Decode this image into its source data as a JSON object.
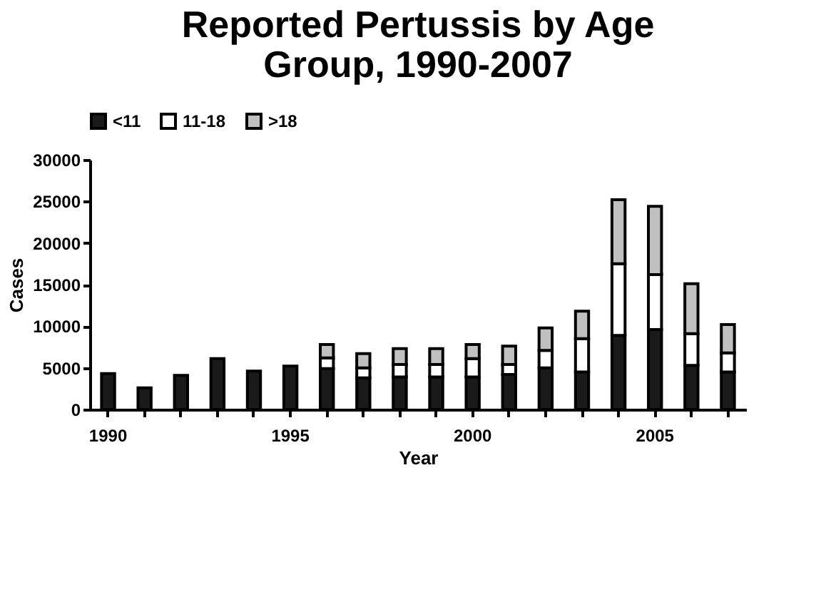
{
  "chart_data": {
    "type": "bar",
    "title": "Reported Pertussis by Age Group, 1990-2007",
    "xlabel": "Year",
    "ylabel": "Cases",
    "categories": [
      "1990",
      null,
      null,
      null,
      null,
      "1995",
      null,
      null,
      null,
      null,
      "2000",
      null,
      null,
      null,
      null,
      "2005",
      null,
      null
    ],
    "stacked": true,
    "legend": "top",
    "grid": false,
    "ylim": [
      0,
      30000
    ],
    "yticks": [
      0,
      5000,
      10000,
      15000,
      20000,
      25000,
      30000
    ],
    "series": [
      {
        "name": "<11",
        "color": "#1a1a1a",
        "values": [
          4300,
          2600,
          4100,
          6100,
          4600,
          5200,
          4900,
          3800,
          3900,
          3900,
          3900,
          4200,
          5000,
          4500,
          8900,
          9600,
          5300,
          4500
        ]
      },
      {
        "name": "11-18",
        "color": "#ffffff",
        "values": [
          null,
          null,
          null,
          null,
          null,
          null,
          1300,
          1200,
          1500,
          1500,
          2200,
          1200,
          2100,
          4000,
          8600,
          6600,
          3800,
          2300
        ]
      },
      {
        "name": ">18",
        "color": "#c0c0c0",
        "values": [
          null,
          null,
          null,
          null,
          null,
          null,
          1600,
          1700,
          1900,
          1900,
          1700,
          2200,
          2700,
          3300,
          7700,
          8200,
          6000,
          3400
        ]
      }
    ]
  }
}
